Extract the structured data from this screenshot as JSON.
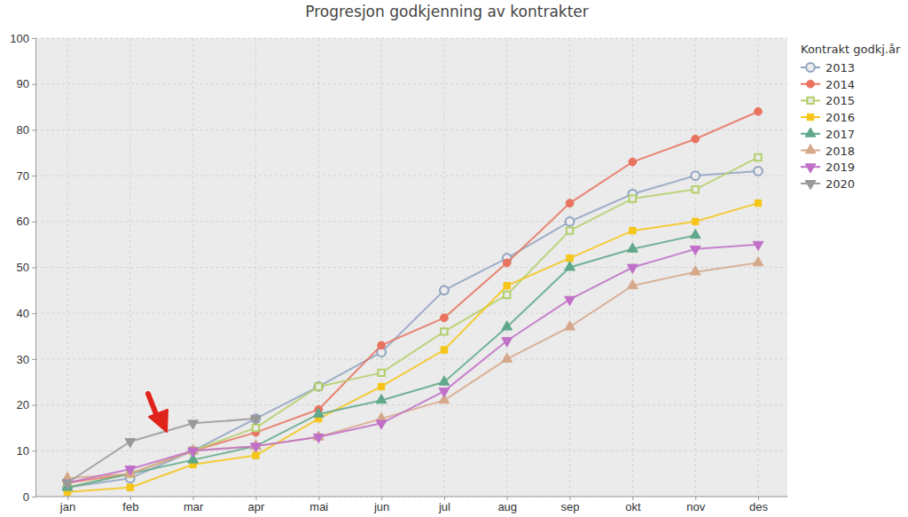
{
  "chart_data": {
    "type": "line",
    "title": "Progresjon godkjenning av kontrakter",
    "legend_title": "Kontrakt godkj.år",
    "categories": [
      "jan",
      "feb",
      "mar",
      "apr",
      "mai",
      "jun",
      "jul",
      "aug",
      "sep",
      "okt",
      "nov",
      "des"
    ],
    "series": [
      {
        "name": "2013",
        "color": "#8fa3c0",
        "marker": "circle-open",
        "values": [
          2,
          4,
          10,
          17,
          24,
          31.5,
          45,
          52,
          60,
          66,
          70,
          71
        ]
      },
      {
        "name": "2014",
        "color": "#e8735f",
        "marker": "circle",
        "values": [
          3,
          5,
          10,
          14,
          19,
          33,
          39,
          51,
          64,
          73,
          78,
          84
        ]
      },
      {
        "name": "2015",
        "color": "#b4cf6a",
        "marker": "square-open",
        "values": [
          2,
          5,
          10,
          15,
          24,
          27,
          36,
          44,
          58,
          65,
          67,
          74
        ]
      },
      {
        "name": "2016",
        "color": "#f5c518",
        "marker": "square",
        "values": [
          1,
          2,
          7,
          9,
          17,
          24,
          32,
          46,
          52,
          58,
          60,
          64
        ]
      },
      {
        "name": "2017",
        "color": "#5fa88a",
        "marker": "triangle",
        "values": [
          2,
          5,
          8,
          11,
          18,
          21,
          25,
          37,
          50,
          54,
          57,
          null
        ]
      },
      {
        "name": "2018",
        "color": "#d6a88a",
        "marker": "triangle",
        "values": [
          4,
          5,
          10,
          11,
          13,
          17,
          21,
          30,
          37,
          46,
          49,
          51
        ]
      },
      {
        "name": "2019",
        "color": "#c070c8",
        "marker": "triangle-down",
        "values": [
          3,
          6,
          10,
          11,
          13,
          16,
          23,
          34,
          43,
          50,
          54,
          55
        ]
      },
      {
        "name": "2020",
        "color": "#999999",
        "marker": "triangle-down",
        "values": [
          3,
          12,
          16,
          17,
          null,
          null,
          null,
          null,
          null,
          null,
          null,
          null
        ]
      }
    ],
    "ylim": [
      0,
      100
    ],
    "yticks": [
      0,
      10,
      20,
      30,
      40,
      50,
      60,
      70,
      80,
      90,
      100
    ],
    "grid": true,
    "legend": "right"
  }
}
